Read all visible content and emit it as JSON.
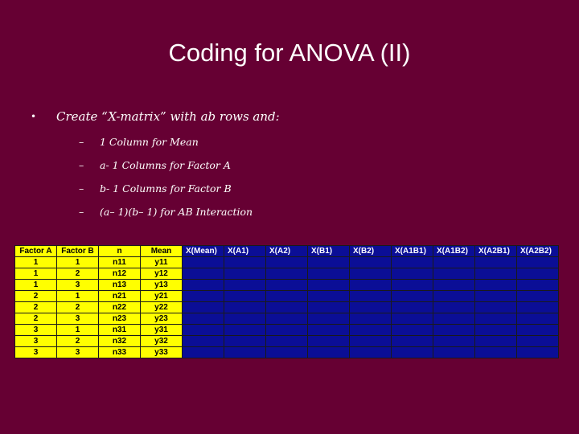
{
  "slide": {
    "title": "Coding for ANOVA (II)",
    "bullet": {
      "pre": "Create “X-matrix” with ",
      "ital": "ab",
      "post": " rows and:"
    },
    "sub_items": [
      {
        "pre": "1 Column for Mean",
        "ital": "",
        "post": ""
      },
      {
        "pre": "",
        "ital": "a",
        "post": "- 1 Columns for Factor A"
      },
      {
        "pre": "",
        "ital": "b",
        "post": "- 1 Columns for Factor B"
      },
      {
        "pre": "(",
        "ital": "a",
        "post": " – 1)(",
        "ital2": "b",
        "post2": " – 1) for AB Interaction"
      }
    ]
  },
  "table": {
    "headers": [
      "Factor A",
      "Factor B",
      "n",
      "Mean",
      "X(Mean)",
      "X(A1)",
      "X(A2)",
      "X(B1)",
      "X(B2)",
      "X(A1B1)",
      "X(A1B2)",
      "X(A2B1)",
      "X(A2B2)"
    ],
    "rows": [
      [
        "1",
        "1",
        "n11",
        "y11"
      ],
      [
        "1",
        "2",
        "n12",
        "y12"
      ],
      [
        "1",
        "3",
        "n13",
        "y13"
      ],
      [
        "2",
        "1",
        "n21",
        "y21"
      ],
      [
        "2",
        "2",
        "n22",
        "y22"
      ],
      [
        "2",
        "3",
        "n23",
        "y23"
      ],
      [
        "3",
        "1",
        "n31",
        "y31"
      ],
      [
        "3",
        "2",
        "n32",
        "y32"
      ],
      [
        "3",
        "3",
        "n33",
        "y33"
      ]
    ]
  },
  "colors": {
    "background": "#660033",
    "yellow": "#ffff00",
    "blue": "#0b0e96"
  }
}
